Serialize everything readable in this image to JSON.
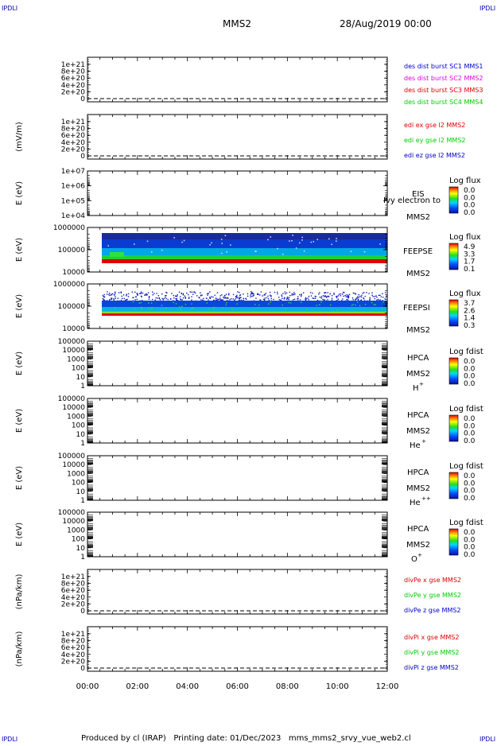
{
  "corner_marks": {
    "top_left": "IPDLI",
    "top_right": "IPDLI",
    "bottom_left": "IPDLI",
    "bottom_right": "IPDLI"
  },
  "header": {
    "mission": "MMS2",
    "datetime": "28/Aug/2019 00:00"
  },
  "footer": {
    "text": "Produced by cl (IRAP)   Printing date: 01/Dec/2023   mms_mms2_srvy_vue_web2.cl"
  },
  "time_axis": {
    "ticks": [
      "00:00",
      "02:00",
      "04:00",
      "06:00",
      "08:00",
      "10:00",
      "12:00"
    ]
  },
  "colors": {
    "red": "#dd0000",
    "green": "#00cc00",
    "blue": "#0000cc",
    "magenta": "#dd00dd",
    "dashed": "#000000"
  },
  "chart_data": [
    {
      "type": "line",
      "ylabel": "",
      "ylim": [
        0,
        1.2e+21
      ],
      "y_ticks": [
        "1e+21",
        "8e+20",
        "6e+20",
        "4e+20",
        "2e+20",
        "0"
      ],
      "series": [
        {
          "name": "des dist burst SC1 MMS1",
          "color": "#0000cc"
        },
        {
          "name": "des dist burst SC2 MMS2",
          "color": "#dd00dd"
        },
        {
          "name": "des dist burst SC3 MMS3",
          "color": "#dd0000"
        },
        {
          "name": "des dist burst SC4 MMS4",
          "color": "#00cc00"
        }
      ],
      "zero_line": true
    },
    {
      "type": "line",
      "ylabel": "(mV/m)",
      "ylim": [
        0,
        1.2e+21
      ],
      "y_ticks": [
        "1e+21",
        "8e+20",
        "6e+20",
        "4e+20",
        "2e+20",
        "0"
      ],
      "series": [
        {
          "name": "edi ex gse l2 MMS2",
          "color": "#dd0000"
        },
        {
          "name": "edi ey gse l2 MMS2",
          "color": "#00cc00"
        },
        {
          "name": "edi ez gse l2 MMS2",
          "color": "#0000cc"
        }
      ],
      "zero_line": true
    },
    {
      "type": "heatmap",
      "ylabel": "E (eV)",
      "ylim": [
        10000.0,
        10000000.0
      ],
      "y_ticks": [
        "1e+07",
        "1e+06",
        "1e+05",
        "1e+04"
      ],
      "instrument": [
        "EIS",
        "MMS2"
      ],
      "overlay_label": "Ivy electron to",
      "cbar_title": "Log flux",
      "cbar_ticks": [
        "0.0",
        "0.0",
        "0.0",
        "0.0"
      ],
      "data_start_h": null
    },
    {
      "type": "heatmap",
      "ylabel": "E (eV)",
      "ylim": [
        10000.0,
        1000000.0
      ],
      "y_ticks": [
        "1000000",
        "100000",
        "10000"
      ],
      "instrument": [
        "FEEPSE",
        "MMS2"
      ],
      "cbar_title": "Log flux",
      "cbar_ticks": [
        "4.9",
        "3.3",
        "1.7",
        "0.1"
      ],
      "data_start_h": 0.6
    },
    {
      "type": "heatmap",
      "ylabel": "E (eV)",
      "ylim": [
        10000.0,
        1000000.0
      ],
      "y_ticks": [
        "1000000",
        "100000",
        "10000"
      ],
      "instrument": [
        "FEEPSI",
        "MMS2"
      ],
      "cbar_title": "Log flux",
      "cbar_ticks": [
        "3.7",
        "2.6",
        "1.4",
        "0.3"
      ],
      "data_start_h": 0.6
    },
    {
      "type": "heatmap",
      "ylabel": "E (eV)",
      "ylim": [
        1,
        100000.0
      ],
      "y_ticks": [
        "100000",
        "10000",
        "1000",
        "100",
        "10",
        "1"
      ],
      "instrument": [
        "HPCA",
        "MMS2"
      ],
      "species": "H",
      "species_sup": "+",
      "cbar_title": "Log fdist",
      "cbar_ticks": [
        "0.0",
        "0.0",
        "0.0",
        "0.0"
      ]
    },
    {
      "type": "heatmap",
      "ylabel": "E (eV)",
      "ylim": [
        1,
        100000.0
      ],
      "y_ticks": [
        "100000",
        "10000",
        "1000",
        "100",
        "10",
        "1"
      ],
      "instrument": [
        "HPCA",
        "MMS2"
      ],
      "species": "He",
      "species_sup": "+",
      "cbar_title": "Log fdist",
      "cbar_ticks": [
        "0.0",
        "0.0",
        "0.0",
        "0.0"
      ]
    },
    {
      "type": "heatmap",
      "ylabel": "E (eV)",
      "ylim": [
        1,
        100000.0
      ],
      "y_ticks": [
        "100000",
        "10000",
        "1000",
        "100",
        "10",
        "1"
      ],
      "instrument": [
        "HPCA",
        "MMS2"
      ],
      "species": "He",
      "species_sup": "++",
      "cbar_title": "Log fdist",
      "cbar_ticks": [
        "0.0",
        "0.0",
        "0.0",
        "0.0"
      ]
    },
    {
      "type": "heatmap",
      "ylabel": "E (eV)",
      "ylim": [
        1,
        100000.0
      ],
      "y_ticks": [
        "100000",
        "10000",
        "1000",
        "100",
        "10",
        "1"
      ],
      "instrument": [
        "HPCA",
        "MMS2"
      ],
      "species": "O",
      "species_sup": "+",
      "cbar_title": "Log fdist",
      "cbar_ticks": [
        "0.0",
        "0.0",
        "0.0",
        "0.0"
      ]
    },
    {
      "type": "line",
      "ylabel": "(nPa/km)",
      "ylim": [
        0,
        1.2e+21
      ],
      "y_ticks": [
        "1e+21",
        "8e+20",
        "6e+20",
        "4e+20",
        "2e+20",
        "0"
      ],
      "series": [
        {
          "name": "divPe x gse MMS2",
          "color": "#dd0000"
        },
        {
          "name": "divPe y gse MMS2",
          "color": "#00cc00"
        },
        {
          "name": "divPe z gse MMS2",
          "color": "#0000cc"
        }
      ],
      "zero_line": true
    },
    {
      "type": "line",
      "ylabel": "(nPa/km)",
      "ylim": [
        0,
        1.2e+21
      ],
      "y_ticks": [
        "1e+21",
        "8e+20",
        "6e+20",
        "4e+20",
        "2e+20",
        "0"
      ],
      "series": [
        {
          "name": "divPi x gse MMS2",
          "color": "#dd0000"
        },
        {
          "name": "divPi y gse MMS2",
          "color": "#00cc00"
        },
        {
          "name": "divPi z gse MMS2",
          "color": "#0000cc"
        }
      ],
      "zero_line": true
    }
  ]
}
